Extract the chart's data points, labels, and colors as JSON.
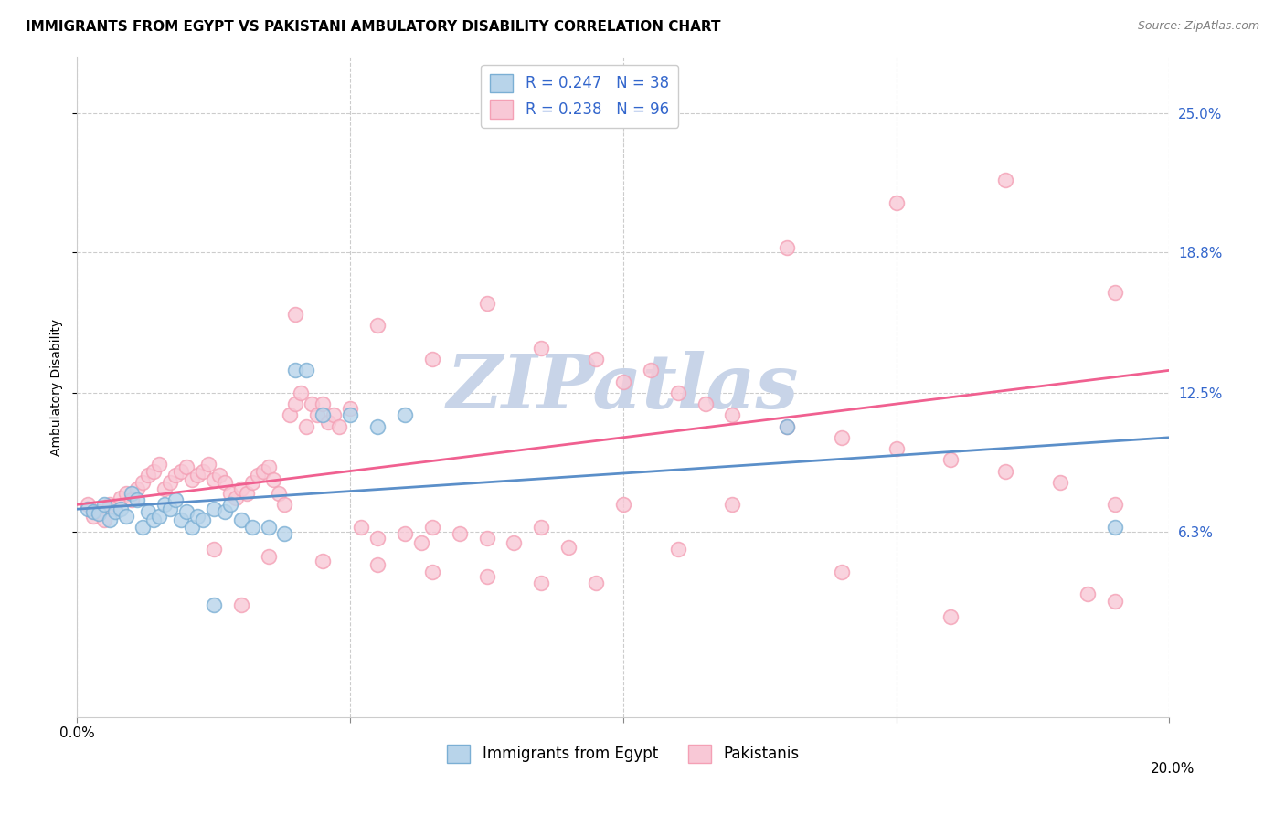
{
  "title": "IMMIGRANTS FROM EGYPT VS PAKISTANI AMBULATORY DISABILITY CORRELATION CHART",
  "source": "Source: ZipAtlas.com",
  "ylabel": "Ambulatory Disability",
  "ytick_labels": [
    "25.0%",
    "18.8%",
    "12.5%",
    "6.3%"
  ],
  "ytick_values": [
    0.25,
    0.188,
    0.125,
    0.063
  ],
  "xlim": [
    0.0,
    0.2
  ],
  "ylim": [
    -0.02,
    0.275
  ],
  "blue_scatter_x": [
    0.002,
    0.003,
    0.004,
    0.005,
    0.006,
    0.007,
    0.008,
    0.009,
    0.01,
    0.011,
    0.012,
    0.013,
    0.014,
    0.015,
    0.016,
    0.017,
    0.018,
    0.019,
    0.02,
    0.021,
    0.022,
    0.023,
    0.025,
    0.027,
    0.028,
    0.03,
    0.032,
    0.035,
    0.038,
    0.04,
    0.042,
    0.045,
    0.05,
    0.055,
    0.06,
    0.13,
    0.19,
    0.025
  ],
  "blue_scatter_y": [
    0.073,
    0.072,
    0.071,
    0.075,
    0.068,
    0.072,
    0.073,
    0.07,
    0.08,
    0.077,
    0.065,
    0.072,
    0.068,
    0.07,
    0.075,
    0.073,
    0.077,
    0.068,
    0.072,
    0.065,
    0.07,
    0.068,
    0.073,
    0.072,
    0.075,
    0.068,
    0.065,
    0.065,
    0.062,
    0.135,
    0.135,
    0.115,
    0.115,
    0.11,
    0.115,
    0.11,
    0.065,
    0.03
  ],
  "pink_scatter_x": [
    0.002,
    0.003,
    0.004,
    0.005,
    0.006,
    0.007,
    0.008,
    0.009,
    0.01,
    0.011,
    0.012,
    0.013,
    0.014,
    0.015,
    0.016,
    0.017,
    0.018,
    0.019,
    0.02,
    0.021,
    0.022,
    0.023,
    0.024,
    0.025,
    0.026,
    0.027,
    0.028,
    0.029,
    0.03,
    0.031,
    0.032,
    0.033,
    0.034,
    0.035,
    0.036,
    0.037,
    0.038,
    0.039,
    0.04,
    0.041,
    0.042,
    0.043,
    0.044,
    0.045,
    0.046,
    0.047,
    0.048,
    0.05,
    0.052,
    0.055,
    0.06,
    0.063,
    0.065,
    0.07,
    0.075,
    0.08,
    0.085,
    0.09,
    0.095,
    0.1,
    0.105,
    0.11,
    0.115,
    0.12,
    0.13,
    0.14,
    0.15,
    0.16,
    0.17,
    0.18,
    0.19,
    0.025,
    0.035,
    0.045,
    0.055,
    0.065,
    0.075,
    0.085,
    0.095,
    0.11,
    0.13,
    0.15,
    0.17,
    0.19,
    0.04,
    0.055,
    0.065,
    0.075,
    0.085,
    0.1,
    0.12,
    0.14,
    0.16,
    0.185,
    0.19,
    0.03
  ],
  "pink_scatter_y": [
    0.075,
    0.07,
    0.072,
    0.068,
    0.075,
    0.073,
    0.078,
    0.08,
    0.077,
    0.082,
    0.085,
    0.088,
    0.09,
    0.093,
    0.082,
    0.085,
    0.088,
    0.09,
    0.092,
    0.086,
    0.088,
    0.09,
    0.093,
    0.086,
    0.088,
    0.085,
    0.08,
    0.078,
    0.082,
    0.08,
    0.085,
    0.088,
    0.09,
    0.092,
    0.086,
    0.08,
    0.075,
    0.115,
    0.12,
    0.125,
    0.11,
    0.12,
    0.115,
    0.12,
    0.112,
    0.115,
    0.11,
    0.118,
    0.065,
    0.06,
    0.062,
    0.058,
    0.065,
    0.062,
    0.06,
    0.058,
    0.065,
    0.056,
    0.14,
    0.13,
    0.135,
    0.125,
    0.12,
    0.115,
    0.11,
    0.105,
    0.1,
    0.095,
    0.09,
    0.085,
    0.075,
    0.055,
    0.052,
    0.05,
    0.048,
    0.045,
    0.043,
    0.04,
    0.04,
    0.055,
    0.19,
    0.21,
    0.22,
    0.17,
    0.16,
    0.155,
    0.14,
    0.165,
    0.145,
    0.075,
    0.075,
    0.045,
    0.025,
    0.035,
    0.032,
    0.03
  ],
  "blue_line_x": [
    0.0,
    0.2
  ],
  "blue_line_y": [
    0.073,
    0.105
  ],
  "pink_line_x": [
    0.0,
    0.2
  ],
  "pink_line_y": [
    0.075,
    0.135
  ],
  "blue_color": "#7bafd4",
  "blue_face_color": "#b8d4ea",
  "pink_color": "#f4a0b5",
  "pink_face_color": "#f8c8d6",
  "blue_line_color": "#5b8fc9",
  "pink_line_color": "#f06090",
  "grid_color": "#cccccc",
  "background_color": "#ffffff",
  "watermark": "ZIPatlas",
  "watermark_color": "#c8d4e8",
  "title_fontsize": 11,
  "label_fontsize": 10,
  "tick_fontsize": 11,
  "legend_r_color": "#3366cc"
}
